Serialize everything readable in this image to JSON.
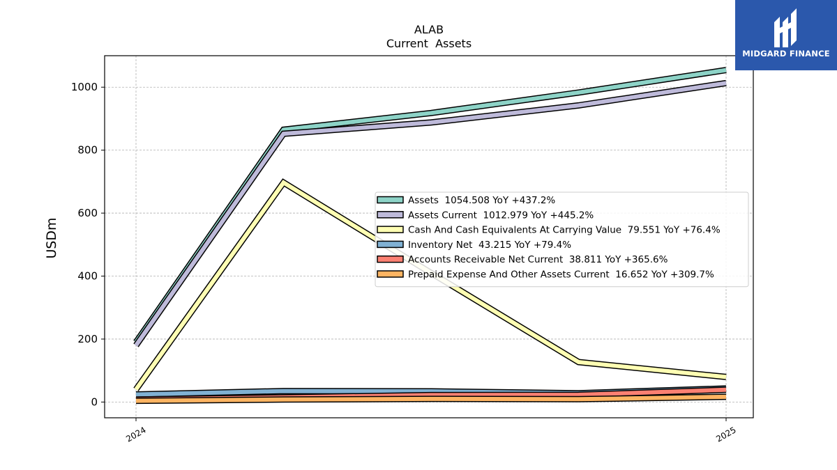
{
  "brand": {
    "name": "MIDGARD FINANCE",
    "bg": "#2b58ac"
  },
  "chart_data": {
    "type": "area",
    "title": "ALAB",
    "subtitle": "Current  Assets",
    "ylabel": "USDm",
    "xlabel": "",
    "ylim": [
      -50,
      1100
    ],
    "yticks": [
      0,
      200,
      400,
      600,
      800,
      1000
    ],
    "xticks": [
      "2024",
      "2025"
    ],
    "x": [
      0,
      1,
      2,
      3,
      4
    ],
    "grid": true,
    "legend_position": "center-right",
    "series": [
      {
        "name": "Assets",
        "legend": "Assets  1054.508 YoY +437.2%",
        "color": "#8dd3c7",
        "values": [
          190,
          865,
          918,
          983,
          1054.508
        ]
      },
      {
        "name": "Assets Current",
        "legend": "Assets Current  1012.979 YoY +445.2%",
        "color": "#bebada",
        "values": [
          180,
          852,
          888,
          942,
          1012.979
        ]
      },
      {
        "name": "Cash And Cash Equivalents At Carrying Value",
        "legend": "Cash And Cash Equivalents At Carrying Value  79.551 YoY +76.4%",
        "color": "#ffffb3",
        "values": [
          40,
          697,
          410,
          127,
          79.551
        ]
      },
      {
        "name": "Inventory Net",
        "legend": "Inventory Net  43.215 YoY +79.4%",
        "color": "#80b1d3",
        "values": [
          24,
          35,
          34,
          28,
          43.215
        ]
      },
      {
        "name": "Accounts Receivable Net Current",
        "legend": "Accounts Receivable Net Current  38.811 YoY +365.6%",
        "color": "#fb8072",
        "values": [
          8,
          15,
          22,
          23,
          38.811
        ]
      },
      {
        "name": "Prepaid Expense And Other Assets Current",
        "legend": "Prepaid Expense And Other Assets Current  16.652 YoY +309.7%",
        "color": "#fdb462",
        "values": [
          4,
          8,
          10,
          9,
          16.652
        ]
      }
    ]
  }
}
